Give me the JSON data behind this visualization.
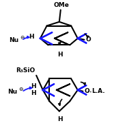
{
  "bg_color": "#ffffff",
  "black": "#000000",
  "blue": "#1a1aff",
  "top_label_OMe": "OMe",
  "top_label_O": "O",
  "top_H_left": "H",
  "top_H_bottom": "H",
  "top_Nu": "Nu",
  "top_minus": "⊖",
  "bot_label_R3SiO": "R₃SiO",
  "bot_label_O": "O",
  "bot_label_LA": "L.A.",
  "bot_H_left_top": "H",
  "bot_H_left_bot": "H",
  "bot_H_bottom": "H",
  "bot_Nu": "Nu",
  "bot_minus": "⊖",
  "fig_width": 1.67,
  "fig_height": 1.89,
  "dpi": 100
}
